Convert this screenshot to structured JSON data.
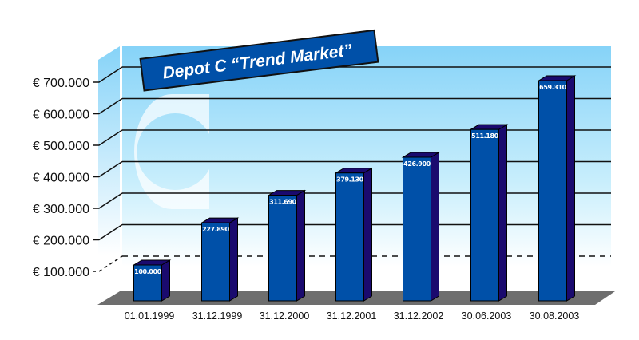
{
  "chart_data": {
    "type": "bar",
    "title": "Depot C “Trend Market”",
    "watermark": "C",
    "categories": [
      "01.01.1999",
      "31.12.1999",
      "31.12.2000",
      "31.12.2001",
      "31.12.2002",
      "30.06.2003",
      "30.08.2003"
    ],
    "values": [
      100000,
      227890,
      311690,
      379130,
      426900,
      511180,
      659310
    ],
    "data_labels": [
      "100.000",
      "227.890",
      "311.690",
      "379.130",
      "426.900",
      "511.180",
      "659.310"
    ],
    "yticks": [
      {
        "value": 100000,
        "label": "€ 100.000"
      },
      {
        "value": 200000,
        "label": "€ 200.000"
      },
      {
        "value": 300000,
        "label": "€ 300.000"
      },
      {
        "value": 400000,
        "label": "€ 400.000"
      },
      {
        "value": 500000,
        "label": "€ 500.000"
      },
      {
        "value": 600000,
        "label": "€ 600.000"
      },
      {
        "value": 700000,
        "label": "€ 700.000"
      }
    ],
    "xlabel": "",
    "ylabel": "",
    "ylim": [
      100000,
      700000
    ],
    "grid": true,
    "colors": {
      "bar_front": "#0050a8",
      "bar_side": "#1a0a6e",
      "floor": "#6e6e6e",
      "wall_top": "#86d3f8",
      "title_bg": "#0050a8"
    }
  }
}
